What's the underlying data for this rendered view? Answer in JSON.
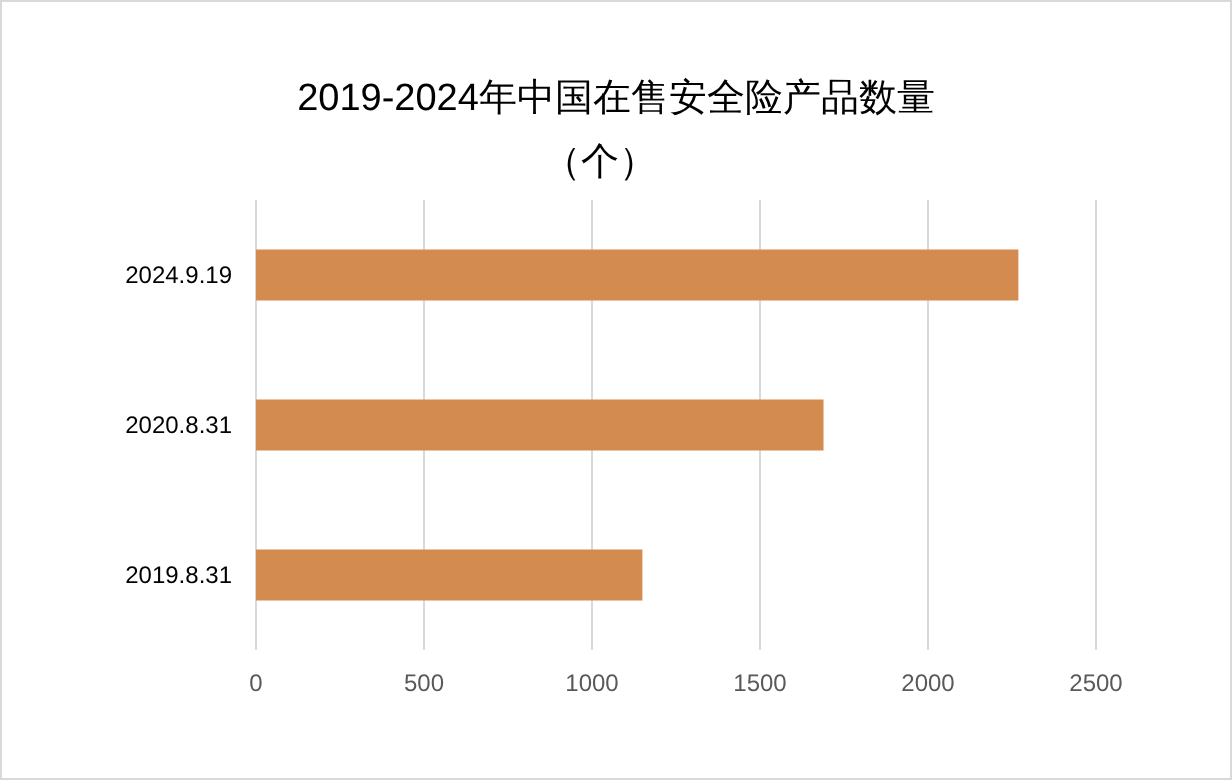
{
  "chart_data": {
    "type": "bar",
    "orientation": "horizontal",
    "title": "2019-2024年中国在售安全险产品数量",
    "subtitle": "（个）",
    "categories": [
      "2024.9.19",
      "2020.8.31",
      "2019.8.31"
    ],
    "values": [
      2269,
      1689,
      1150
    ],
    "color": "#d38b4f",
    "xlim": [
      0,
      2500
    ],
    "xticks": [
      0,
      500,
      1000,
      1500,
      2000,
      2500
    ],
    "grid": "x"
  }
}
